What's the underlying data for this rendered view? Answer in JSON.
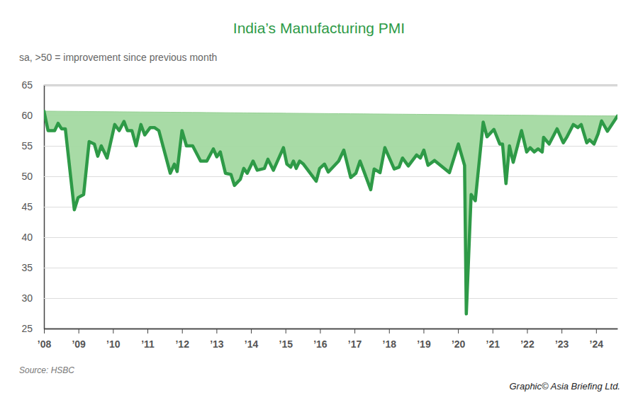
{
  "chart_data": {
    "type": "area",
    "title": "India’s Manufacturing PMI",
    "subtitle": "sa, >50 = improvement since previous month",
    "source": "Source: HSBC",
    "credit": "Graphic© Asia Briefing Ltd.",
    "color": "#2e9a47",
    "grid": true,
    "x": [
      2008.0,
      2008.12,
      2008.31,
      2008.41,
      2008.51,
      2008.62,
      2008.88,
      2008.99,
      2009.15,
      2009.31,
      2009.46,
      2009.56,
      2009.66,
      2009.83,
      2010.05,
      2010.18,
      2010.32,
      2010.42,
      2010.55,
      2010.67,
      2010.81,
      2010.92,
      2011.08,
      2011.2,
      2011.33,
      2011.66,
      2011.78,
      2011.86,
      2012.0,
      2012.13,
      2012.31,
      2012.54,
      2012.72,
      2012.91,
      2013.01,
      2013.11,
      2013.26,
      2013.42,
      2013.52,
      2013.69,
      2013.79,
      2013.89,
      2014.06,
      2014.18,
      2014.39,
      2014.49,
      2014.65,
      2014.94,
      2015.04,
      2015.15,
      2015.23,
      2015.31,
      2015.41,
      2015.52,
      2015.89,
      2015.99,
      2016.13,
      2016.24,
      2016.54,
      2016.69,
      2016.89,
      2017.04,
      2017.16,
      2017.26,
      2017.47,
      2017.57,
      2017.74,
      2017.88,
      2018.15,
      2018.29,
      2018.39,
      2018.56,
      2018.8,
      2018.91,
      2019.01,
      2019.13,
      2019.32,
      2019.75,
      2020.01,
      2020.19,
      2020.24,
      2020.38,
      2020.5,
      2020.73,
      2020.84,
      2021.04,
      2021.21,
      2021.29,
      2021.39,
      2021.49,
      2021.6,
      2021.84,
      2021.99,
      2022.09,
      2022.21,
      2022.32,
      2022.44,
      2022.48,
      2022.64,
      2022.87,
      2023.05,
      2023.16,
      2023.34,
      2023.47,
      2023.57,
      2023.73,
      2023.81,
      2023.94,
      2024.06,
      2024.16,
      2024.33,
      2024.62
    ],
    "values": [
      60.7,
      57.5,
      57.5,
      58.7,
      57.8,
      57.8,
      44.5,
      46.5,
      47,
      55.7,
      55.3,
      53.3,
      55,
      53,
      58.5,
      57.5,
      59,
      57.5,
      57.5,
      55,
      58.5,
      56.8,
      58,
      58,
      57.5,
      50.5,
      52,
      50.8,
      57.5,
      55,
      55,
      52.5,
      52.5,
      54.5,
      53.2,
      54,
      50.5,
      50.3,
      48.5,
      49.5,
      51.3,
      50.5,
      52.5,
      51,
      51.3,
      52.8,
      51,
      54.7,
      52,
      51.5,
      52.5,
      51.3,
      52.5,
      52,
      49.2,
      51.3,
      52,
      50.7,
      52.5,
      54.3,
      49.8,
      50.5,
      52.5,
      51,
      47.8,
      51.2,
      50.6,
      54.7,
      51.2,
      51.5,
      53,
      51.7,
      53.5,
      53,
      54.3,
      51.8,
      52.6,
      50.6,
      55.3,
      51.8,
      27.4,
      47,
      46,
      58.9,
      56.5,
      57.7,
      55.3,
      55.3,
      48.8,
      55,
      52.3,
      57.5,
      54,
      54.7,
      54,
      54.5,
      54,
      56.4,
      55.3,
      57.8,
      55.5,
      56.5,
      58.5,
      58,
      58.5,
      55.5,
      56,
      55.3,
      57,
      59.1,
      57.4,
      59.9
    ],
    "xlim": [
      2008,
      2024.62
    ],
    "xticks": [
      {
        "value": 2008,
        "label": "’08"
      },
      {
        "value": 2009,
        "label": "’09"
      },
      {
        "value": 2010,
        "label": "’10"
      },
      {
        "value": 2011,
        "label": "’11"
      },
      {
        "value": 2012,
        "label": "’12"
      },
      {
        "value": 2013,
        "label": "’13"
      },
      {
        "value": 2014,
        "label": "’14"
      },
      {
        "value": 2015,
        "label": "’15"
      },
      {
        "value": 2016,
        "label": "’16"
      },
      {
        "value": 2017,
        "label": "’17"
      },
      {
        "value": 2018,
        "label": "’18"
      },
      {
        "value": 2019,
        "label": "’19"
      },
      {
        "value": 2020,
        "label": "’20"
      },
      {
        "value": 2021,
        "label": "’21"
      },
      {
        "value": 2022,
        "label": "’22"
      },
      {
        "value": 2023,
        "label": "’23"
      },
      {
        "value": 2024,
        "label": "’24"
      }
    ],
    "ylim": [
      25,
      65
    ],
    "yticks": [
      25,
      30,
      35,
      40,
      45,
      50,
      55,
      60,
      65
    ]
  }
}
